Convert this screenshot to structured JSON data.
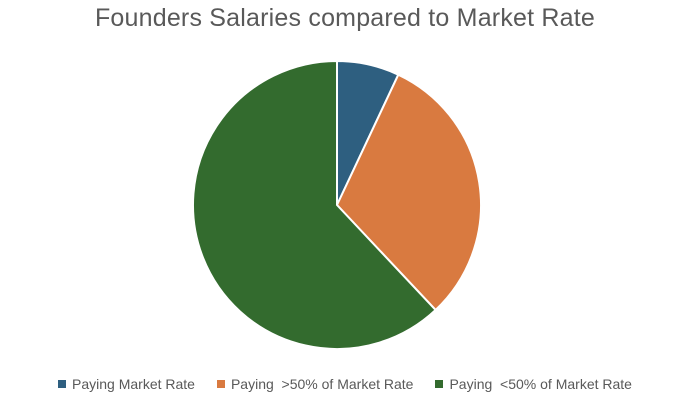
{
  "chart_data": {
    "type": "pie",
    "title": "Founders Salaries compared to Market Rate",
    "categories": [
      "Paying Market Rate",
      "Paying  >50% of Market Rate",
      "Paying  <50% of Market Rate"
    ],
    "values": [
      7,
      31,
      62
    ],
    "colors": [
      "#2e5f80",
      "#d97a40",
      "#336b2e"
    ],
    "legend_position": "bottom"
  }
}
